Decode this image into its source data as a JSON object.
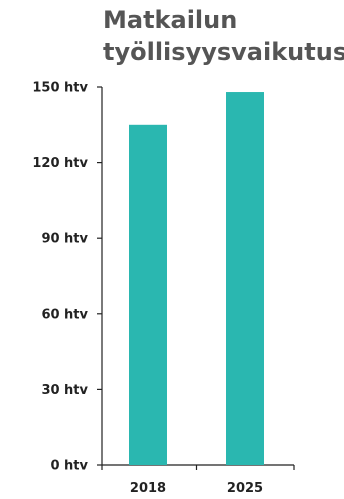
{
  "chart_data": {
    "type": "bar",
    "title_lines": [
      "Matkailun",
      "työllisyysvaikutus"
    ],
    "categories": [
      "2018",
      "2025"
    ],
    "values": [
      135,
      148
    ],
    "ylim": [
      0,
      150
    ],
    "yticks": [
      0,
      30,
      60,
      90,
      120,
      150
    ],
    "ytick_labels": [
      "0 htv",
      "30 htv",
      "60 htv",
      "90 htv",
      "120 htv",
      "150 htv"
    ],
    "bar_color": "#2ab7b0",
    "axis_color": "#222222",
    "grid": false
  }
}
